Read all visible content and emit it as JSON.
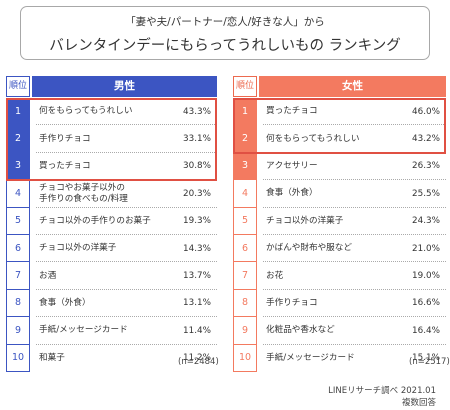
{
  "header": {
    "subtitle": "「妻や夫/パートナー/恋人/好きな人」から",
    "title": "バレンタインデーにもらってうれしいもの ランキング"
  },
  "colors": {
    "male": "#3c55c2",
    "female": "#f37a60",
    "highlight": "#e05043"
  },
  "male": {
    "rank_header": "順位",
    "label": "男性",
    "n": "(n=2484)",
    "rows": [
      {
        "rank": "1",
        "item": "何をもらってもうれしい",
        "pct": "43.3%"
      },
      {
        "rank": "2",
        "item": "手作りチョコ",
        "pct": "33.1%"
      },
      {
        "rank": "3",
        "item": "買ったチョコ",
        "pct": "30.8%"
      },
      {
        "rank": "4",
        "item": "チョコやお菓子以外の\n手作りの食べもの/料理",
        "pct": "20.3%"
      },
      {
        "rank": "5",
        "item": "チョコ以外の手作りのお菓子",
        "pct": "19.3%"
      },
      {
        "rank": "6",
        "item": "チョコ以外の洋菓子",
        "pct": "14.3%"
      },
      {
        "rank": "7",
        "item": "お酒",
        "pct": "13.7%"
      },
      {
        "rank": "8",
        "item": "食事（外食）",
        "pct": "13.1%"
      },
      {
        "rank": "9",
        "item": "手紙/メッセージカード",
        "pct": "11.4%"
      },
      {
        "rank": "10",
        "item": "和菓子",
        "pct": "11.2%"
      }
    ]
  },
  "female": {
    "rank_header": "順位",
    "label": "女性",
    "n": "(n=2517)",
    "rows": [
      {
        "rank": "1",
        "item": "買ったチョコ",
        "pct": "46.0%"
      },
      {
        "rank": "2",
        "item": "何をもらってもうれしい",
        "pct": "43.2%"
      },
      {
        "rank": "3",
        "item": "アクセサリー",
        "pct": "26.3%"
      },
      {
        "rank": "4",
        "item": "食事（外食）",
        "pct": "25.5%"
      },
      {
        "rank": "5",
        "item": "チョコ以外の洋菓子",
        "pct": "24.3%"
      },
      {
        "rank": "6",
        "item": "かばんや財布や服など",
        "pct": "21.0%"
      },
      {
        "rank": "7",
        "item": "お花",
        "pct": "19.0%"
      },
      {
        "rank": "8",
        "item": "手作りチョコ",
        "pct": "16.6%"
      },
      {
        "rank": "9",
        "item": "化粧品や香水など",
        "pct": "16.4%"
      },
      {
        "rank": "10",
        "item": "手紙/メッセージカード",
        "pct": "15.1%"
      }
    ]
  },
  "footer": {
    "source": "LINEリサーチ調べ 2021.01",
    "note": "複数回答"
  },
  "chart_data": {
    "type": "table",
    "title": "バレンタインデーにもらってうれしいもの ランキング",
    "subtitle": "「妻や夫/パートナー/恋人/好きな人」から",
    "columns": [
      "順位",
      "男性",
      "女性"
    ],
    "series": [
      {
        "name": "男性",
        "categories": [
          "何をもらってもうれしい",
          "手作りチョコ",
          "買ったチョコ",
          "チョコやお菓子以外の手作りの食べもの/料理",
          "チョコ以外の手作りのお菓子",
          "チョコ以外の洋菓子",
          "お酒",
          "食事（外食）",
          "手紙/メッセージカード",
          "和菓子"
        ],
        "values": [
          43.3,
          33.1,
          30.8,
          20.3,
          19.3,
          14.3,
          13.7,
          13.1,
          11.4,
          11.2
        ]
      },
      {
        "name": "女性",
        "categories": [
          "買ったチョコ",
          "何をもらってもうれしい",
          "アクセサリー",
          "食事（外食）",
          "チョコ以外の洋菓子",
          "かばんや財布や服など",
          "お花",
          "手作りチョコ",
          "化粧品や香水など",
          "手紙/メッセージカード"
        ],
        "values": [
          46.0,
          43.2,
          26.3,
          25.5,
          24.3,
          21.0,
          19.0,
          16.6,
          16.4,
          15.1
        ]
      }
    ]
  }
}
